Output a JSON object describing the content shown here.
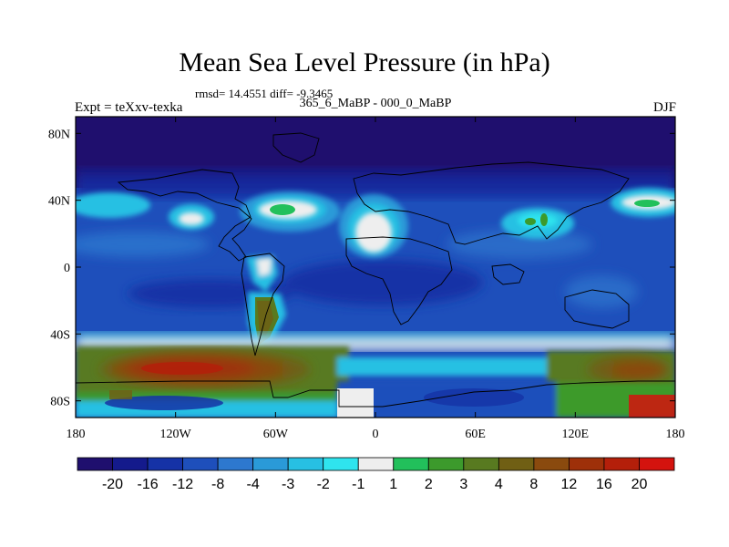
{
  "title": "Mean Sea Level Pressure (in hPa)",
  "stats_text": "rmsd= 14.4551 diff= -9.3465",
  "experiment_label": "Expt = teXxv-texka",
  "comparison_label": "365_6_MaBP - 000_0_MaBP",
  "season_label": "DJF",
  "chart_data": {
    "type": "heatmap",
    "title": "Mean Sea Level Pressure (in hPa)",
    "x_ticks": [
      {
        "lon": -180,
        "label": "180"
      },
      {
        "lon": -120,
        "label": "120W"
      },
      {
        "lon": -60,
        "label": "60W"
      },
      {
        "lon": 0,
        "label": "0"
      },
      {
        "lon": 60,
        "label": "60E"
      },
      {
        "lon": 120,
        "label": "120E"
      },
      {
        "lon": 180,
        "label": "180"
      }
    ],
    "y_ticks": [
      {
        "lat": 80,
        "label": "80N"
      },
      {
        "lat": 40,
        "label": "40N"
      },
      {
        "lat": 0,
        "label": "0"
      },
      {
        "lat": -40,
        "label": "40S"
      },
      {
        "lat": -80,
        "label": "80S"
      }
    ],
    "xlim": [
      -180,
      180
    ],
    "ylim": [
      -90,
      90
    ],
    "colorbar": {
      "colors": [
        "#1f0f6e",
        "#141a8c",
        "#1532a6",
        "#1e4fbb",
        "#2d78cf",
        "#2a9ad8",
        "#27c0e3",
        "#2fe4ee",
        "#eeeeee",
        "#22c05b",
        "#3c9a2c",
        "#587a20",
        "#705f14",
        "#8a4a0e",
        "#9e3009",
        "#b41f0a",
        "#d4130e"
      ],
      "labels": [
        "-20",
        "-16",
        "-12",
        "-8",
        "-4",
        "-3",
        "-2",
        "-1",
        "1",
        "2",
        "3",
        "4",
        "8",
        "12",
        "16",
        "20"
      ]
    }
  }
}
